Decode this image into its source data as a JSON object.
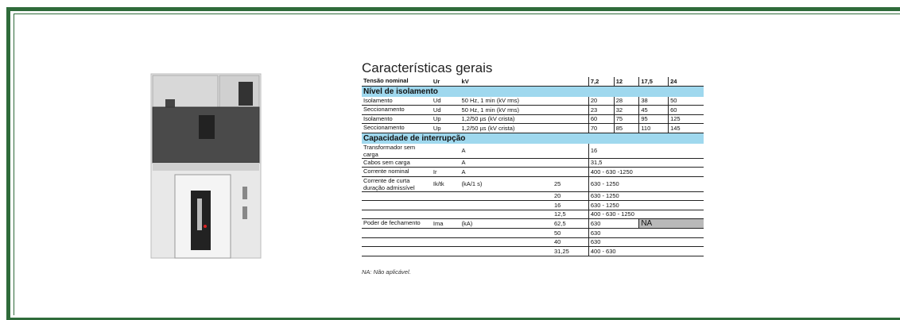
{
  "title": "Características gerais",
  "header_row": {
    "label": "Tensão nominal",
    "symbol": "Ur",
    "unit": "kV",
    "values": [
      "7,2",
      "12",
      "17,5",
      "24"
    ]
  },
  "sections": [
    {
      "title": "Nível de isolamento",
      "rows": [
        {
          "label": "Isolamento",
          "symbol": "Ud",
          "unit": "50 Hz, 1 min (kV rms)",
          "values": [
            "20",
            "28",
            "38",
            "50"
          ]
        },
        {
          "label": "Seccionamento",
          "symbol": "Ud",
          "unit": "50 Hz, 1 min (kV rms)",
          "values": [
            "23",
            "32",
            "45",
            "60"
          ]
        },
        {
          "label": "Isolamento",
          "symbol": "Up",
          "unit": "1,2/50 µs (kV crista)",
          "values": [
            "60",
            "75",
            "95",
            "125"
          ]
        },
        {
          "label": "Seccionamento",
          "symbol": "Up",
          "unit": "1,2/50 µs (kV crista)",
          "values": [
            "70",
            "85",
            "110",
            "145"
          ]
        }
      ]
    },
    {
      "title": "Capacidade de interrupção",
      "rows": [
        {
          "label": "Transformador sem carga",
          "unit": "A",
          "values": [
            "16"
          ]
        },
        {
          "label": "Cabos sem carga",
          "unit": "A",
          "values": [
            "31,5"
          ]
        },
        {
          "label": "Corrente nominal",
          "symbol": "Ir",
          "unit": "A",
          "values": [
            "400 - 630 -1250"
          ]
        },
        {
          "label": "Corrente de curta duração admissível",
          "symbol": "Ik/tk",
          "unit": "(kA/1 s)",
          "sub": "25",
          "values": [
            "630 - 1250"
          ]
        },
        {
          "sub": "20",
          "values": [
            "630 - 1250"
          ]
        },
        {
          "sub": "16",
          "values": [
            "630 - 1250"
          ]
        },
        {
          "sub": "12,5",
          "values": [
            "400 - 630 - 1250"
          ]
        },
        {
          "label": "Poder de fechamento",
          "symbol": "Ima",
          "unit": "(kA)",
          "sub": "62,5",
          "values": [
            "630",
            "NA"
          ]
        },
        {
          "sub": "50",
          "values": [
            "630"
          ]
        },
        {
          "sub": "40",
          "values": [
            "630"
          ]
        },
        {
          "sub": "31,25",
          "values": [
            "400 - 630"
          ]
        }
      ]
    }
  ],
  "footnote": "NA: Não aplicável."
}
